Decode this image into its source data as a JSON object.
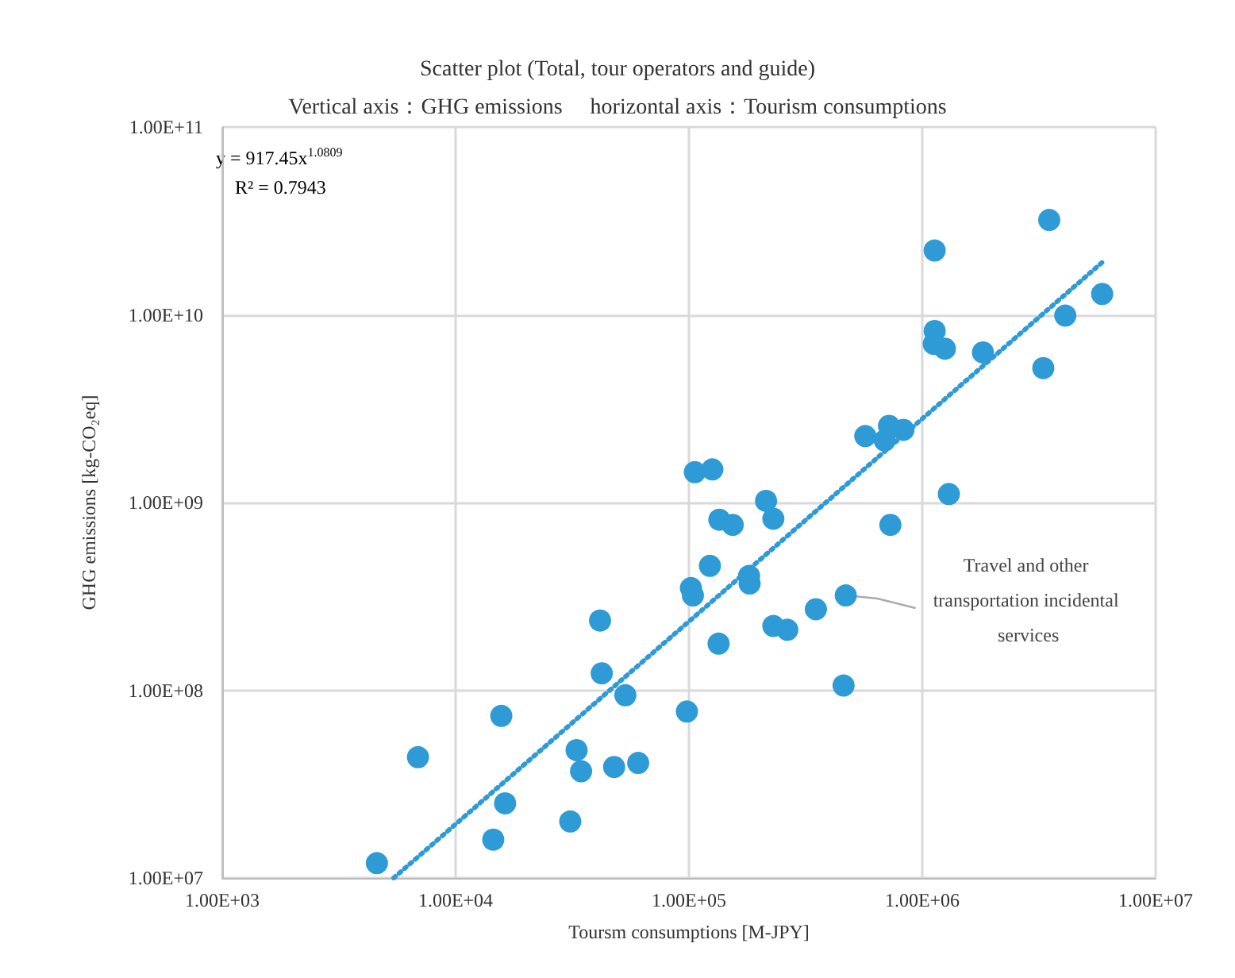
{
  "chart_data": {
    "type": "scatter",
    "title": "Scatter plot (Total, tour operators and guide)",
    "subtitle": "Vertical axis：GHG emissions　 horizontal axis：Tourism consumptions",
    "xlabel": "Toursm consumptions [M-JPY]",
    "ylabel": "GHG emissions [kg-CO₂eq]",
    "log": "xy",
    "grid": true,
    "marker": "circle",
    "xlim": [
      1000,
      10000000
    ],
    "ylim": [
      10000000,
      100000000000
    ],
    "xticks": [
      {
        "value": 1000,
        "label": "1.00E+03"
      },
      {
        "value": 10000,
        "label": "1.00E+04"
      },
      {
        "value": 100000,
        "label": "1.00E+05"
      },
      {
        "value": 1000000,
        "label": "1.00E+06"
      },
      {
        "value": 10000000,
        "label": "1.00E+07"
      }
    ],
    "yticks": [
      {
        "value": 10000000,
        "label": "1.00E+07"
      },
      {
        "value": 100000000,
        "label": "1.00E+08"
      },
      {
        "value": 1000000000,
        "label": "1.00E+09"
      },
      {
        "value": 10000000000,
        "label": "1.00E+10"
      },
      {
        "value": 100000000000,
        "label": "1.00E+11"
      }
    ],
    "series": [
      {
        "color": "#2e9bd6",
        "x": [
          4600,
          6900,
          14500,
          15700,
          16300,
          31000,
          33000,
          34500,
          41600,
          42300,
          47800,
          53400,
          60600,
          98000,
          106000,
          126000,
          214000,
          230000,
          135000,
          154000,
          123000,
          181000,
          182000,
          102000,
          104000,
          470000,
          350000,
          230000,
          264000,
          134000,
          460000,
          1130000,
          3500000,
          5900000,
          4100000,
          1130000,
          1120000,
          1250000,
          1820000,
          3300000,
          570000,
          720000,
          830000,
          690000,
          1300000,
          730000
        ],
        "values": [
          12000000,
          44000000,
          16000000,
          73000000,
          25000000,
          20000000,
          48000000,
          37000000,
          235000000,
          123000000,
          39000000,
          94000000,
          41000000,
          77000000,
          1450000000,
          1500000000,
          1020000000,
          820000000,
          810000000,
          760000000,
          460000000,
          406000000,
          370000000,
          350000000,
          320000000,
          320000000,
          270000000,
          220000000,
          210000000,
          177000000,
          106000000,
          22000000000,
          32000000000,
          12900000000,
          9900000000,
          8200000000,
          7000000000,
          6600000000,
          6300000000,
          5200000000,
          2260000000,
          2560000000,
          2440000000,
          2140000000,
          1110000000,
          760000000
        ]
      },
      {
        "type": "line",
        "color": "#2e9bd6",
        "marker": "none",
        "line_style": "dotted",
        "x": [
          5430,
          5900000
        ],
        "values": [
          10000000,
          19000000000
        ]
      }
    ],
    "annotations": [
      "y = 917.45x$^{1.0809}$",
      "R² = 0.7943",
      {
        "text": "Travel and other transportation incidental services",
        "x": 470000,
        "y": 320000000
      }
    ]
  }
}
